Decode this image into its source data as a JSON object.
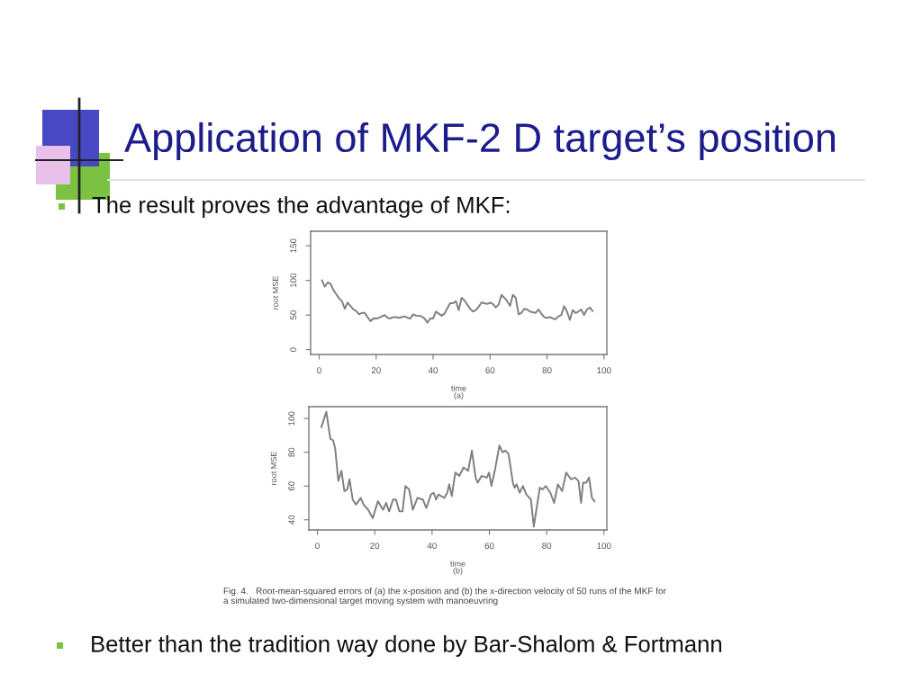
{
  "chart_data": [
    {
      "type": "line",
      "title": "Application of MKF-2 D target’s position",
      "subtitle": "The result proves the advantage of MKF:",
      "xlabel": "time\n(a)",
      "ylabel": "root MSE",
      "series": [
        {
          "color": "#7f7f7f",
          "x": [
            1,
            2,
            3,
            4,
            5,
            6,
            7,
            8,
            9,
            10,
            11,
            12,
            13,
            14,
            15,
            16,
            17,
            18,
            19,
            20,
            21,
            22,
            23,
            24,
            25,
            26,
            27,
            28,
            29,
            30,
            31,
            32,
            33,
            34,
            35,
            36,
            37,
            38,
            39,
            40,
            41,
            42,
            43,
            44,
            45,
            46,
            47,
            48,
            49,
            50,
            51,
            52,
            53,
            54,
            55,
            56,
            57,
            58,
            59,
            60,
            61,
            62,
            63,
            64,
            65,
            66,
            67,
            68,
            69,
            70,
            71,
            72,
            73,
            74,
            75,
            76,
            77,
            78,
            79,
            80,
            81,
            82,
            83,
            84,
            85,
            86,
            87,
            88,
            89,
            90,
            91,
            92,
            93,
            94,
            95,
            96
          ],
          "values": [
            100,
            91,
            97,
            95,
            86,
            80,
            74,
            70,
            59,
            68,
            63,
            58,
            56,
            51,
            53,
            53,
            47,
            41,
            45,
            45,
            46,
            48,
            50,
            46,
            45,
            47,
            47,
            46,
            47,
            48,
            46,
            45,
            51,
            49,
            49,
            48,
            45,
            39,
            45,
            45,
            55,
            52,
            49,
            52,
            60,
            67,
            67,
            70,
            57,
            75,
            71,
            65,
            59,
            55,
            57,
            62,
            68,
            67,
            66,
            68,
            66,
            61,
            65,
            79,
            75,
            70,
            63,
            79,
            75,
            51,
            53,
            59,
            58,
            55,
            54,
            53,
            58,
            52,
            47,
            46,
            47,
            45,
            44,
            48,
            50,
            63,
            55,
            43,
            57,
            53,
            55,
            58,
            50,
            58,
            61,
            56
          ]
        }
      ],
      "xlim": [
        -3,
        101
      ],
      "ylim": [
        -7,
        171
      ],
      "xticks": [
        0,
        20,
        40,
        60,
        80,
        100
      ],
      "yticks": [
        0,
        50,
        100,
        150
      ]
    },
    {
      "type": "line",
      "xlabel": "time\n(b)",
      "ylabel": "root MSE",
      "series": [
        {
          "color": "#7f7f7f",
          "x": [
            1.4,
            3.1,
            4.5,
            5.5,
            6.2,
            7.3,
            8.4,
            9.4,
            10.4,
            11.2,
            12.3,
            13.5,
            15.1,
            16.1,
            17.7,
            19.3,
            21.1,
            22.9,
            24,
            25,
            26.4,
            27.4,
            28.6,
            29.7,
            30.7,
            32,
            33.3,
            34.9,
            36.8,
            38,
            39.6,
            40.6,
            41.4,
            42.2,
            44.3,
            45.3,
            46,
            46.9,
            48.1,
            49.5,
            51,
            52.6,
            53.9,
            55.2,
            55.9,
            57.3,
            59.1,
            59.9,
            60.7,
            62,
            63.5,
            64.6,
            65.6,
            66.7,
            68.2,
            68.8,
            69.5,
            70.6,
            71.7,
            72.9,
            74.5,
            75.5,
            77.6,
            78.6,
            79.7,
            81.3,
            82.6,
            83.9,
            85.4,
            86.8,
            88.5,
            89.9,
            91.1,
            92,
            92.7,
            93.8,
            94.8,
            95.8,
            96.7
          ],
          "values": [
            95,
            104,
            88,
            87,
            82,
            63,
            69,
            57,
            58,
            64,
            52,
            49,
            53,
            49,
            46,
            41,
            51,
            46,
            50,
            45,
            52,
            52,
            45,
            45,
            60,
            58,
            46,
            53,
            52,
            47,
            55,
            56,
            52,
            55,
            53,
            56,
            61,
            54,
            68,
            66,
            71,
            69,
            81,
            65,
            62,
            66,
            65,
            68,
            60,
            70,
            84,
            80,
            81,
            79,
            62,
            59,
            61,
            56,
            60,
            55,
            52,
            36,
            59,
            58,
            60,
            56,
            50,
            61,
            57,
            68,
            64,
            65,
            63,
            50,
            62,
            62,
            65,
            53,
            51
          ]
        }
      ],
      "xlim": [
        -3,
        101
      ],
      "ylim": [
        34,
        107
      ],
      "xticks": [
        0,
        20,
        40,
        60,
        80,
        100
      ],
      "yticks": [
        40,
        60,
        80,
        100
      ],
      "annotations": [
        "Fig. 4.   Root-mean-squared errors of (a) the x-position and (b) the x-direction velocity of 50 runs of the MKF for\na simulated two-dimensional target moving system with manoeuvring",
        "Better than the tradition way done by Bar-Shalom & Fortmann"
      ]
    }
  ]
}
